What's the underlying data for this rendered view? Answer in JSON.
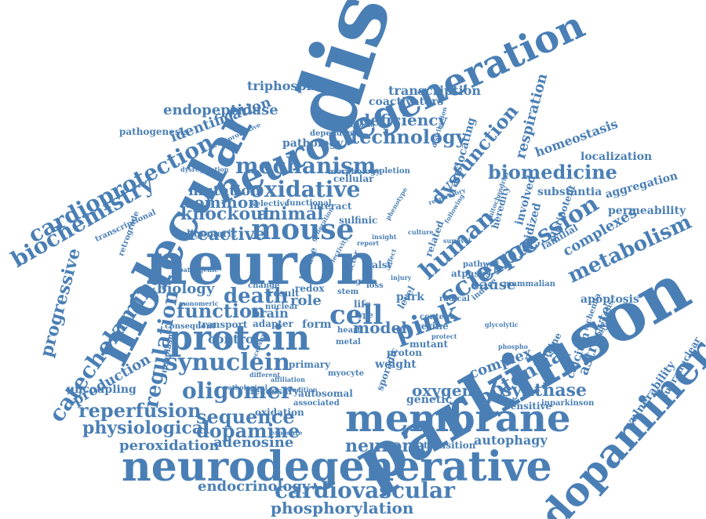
{
  "word_color": "#4a7fb5",
  "background": "#ffffff",
  "words": [
    "disease",
    "parkinson",
    "neuron",
    "molecular",
    "neurodegeneration",
    "neurodegenerative",
    "dopaminergic",
    "membrane",
    "protein",
    "mouse",
    "human",
    "pink",
    "science",
    "expression",
    "oxidative",
    "cell",
    "mechanism",
    "cardiovascular",
    "synuclein",
    "dopamine",
    "oligomer",
    "potential",
    "metabolism",
    "biomedicine",
    "technology",
    "dysfunction",
    "biochemistry",
    "cardioprotection",
    "catecholamine",
    "progressive",
    "knockout",
    "animal",
    "reactive",
    "function",
    "death",
    "regulation",
    "reperfusion",
    "physiological",
    "sequence",
    "phosphorylation",
    "endocrinology",
    "peroxidation",
    "adenosine",
    "neuronal",
    "autophagy",
    "complexes",
    "complex",
    "synthase",
    "oxygen",
    "model",
    "deficiency",
    "identification",
    "endopeptidase",
    "triphosphate",
    "transcription",
    "coactivators",
    "pathogenesis",
    "respiration",
    "homeostasis",
    "localization",
    "aggregation",
    "substantia",
    "permeability",
    "apoptosis",
    "vulnerability",
    "supranuclear",
    "astrocyte",
    "calcium",
    "mutation",
    "common",
    "biology",
    "brain",
    "cause",
    "pathology",
    "production",
    "uncoupling",
    "genetic",
    "sensitive",
    "inparkinson",
    "control",
    "transport",
    "adapter",
    "form",
    "role",
    "result",
    "interact",
    "cellular",
    "selective",
    "functional",
    "dependent",
    "neuroblastoma",
    "neuroprotective",
    "transcriptional",
    "retrograde",
    "oligomeric",
    "monomeric",
    "pathogenic",
    "neoplasm",
    "depletion",
    "morphology",
    "sulfinic",
    "insight",
    "heredity",
    "involved",
    "oxidized",
    "translocating",
    "pluripotent",
    "familial",
    "mammalian",
    "atpases",
    "induce",
    "ischemia",
    "biogenesis",
    "cysteine",
    "glycolytic",
    "phospho",
    "related",
    "survival",
    "content",
    "serine",
    "mutant",
    "proton",
    "weight",
    "sporadic",
    "associated",
    "autosomal",
    "necessary",
    "oxidation",
    "myocyte",
    "different",
    "primary",
    "condition",
    "recessive",
    "type",
    "metal",
    "heart",
    "life",
    "loss",
    "stem",
    "factor",
    "kinase",
    "redox",
    "nuclear",
    "change",
    "culture",
    "following",
    "respiratory",
    "pathway",
    "transition",
    "consequent",
    "dysregulation",
    "affiliation",
    "selectivity",
    "injury",
    "effect",
    "palsy",
    "report",
    "phenotype",
    "generation",
    "pathological",
    "exposure",
    "radical",
    "protect",
    "mitochondrial",
    "park",
    "level",
    "distribution",
    "gene"
  ]
}
